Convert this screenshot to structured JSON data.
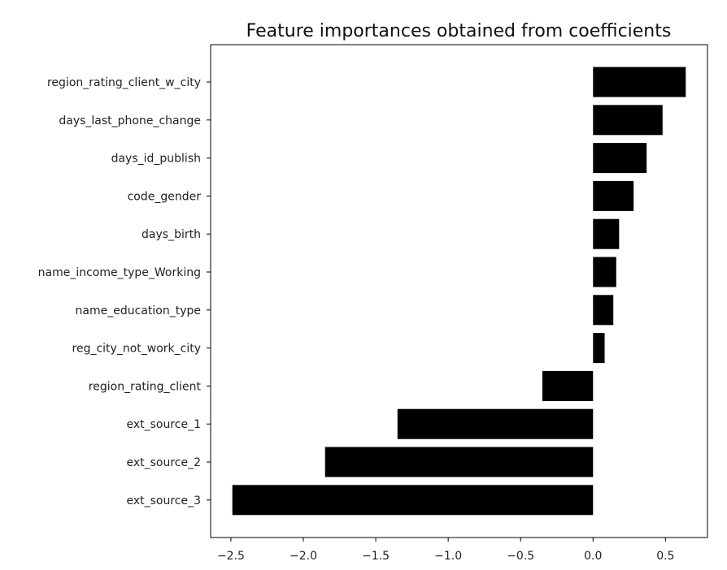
{
  "chart_data": {
    "type": "bar",
    "orientation": "horizontal",
    "title": "Feature importances obtained from coefficients",
    "xlabel": "",
    "ylabel": "",
    "categories": [
      "region_rating_client_w_city",
      "days_last_phone_change",
      "days_id_publish",
      "code_gender",
      "days_birth",
      "name_income_type_Working",
      "name_education_type",
      "reg_city_not_work_city",
      "region_rating_client",
      "ext_source_1",
      "ext_source_2",
      "ext_source_3"
    ],
    "values": [
      0.64,
      0.48,
      0.37,
      0.28,
      0.18,
      0.16,
      0.14,
      0.08,
      -0.35,
      -1.35,
      -1.85,
      -2.49
    ],
    "xlim": [
      -2.64,
      0.79
    ],
    "xticks": [
      -2.5,
      -2.0,
      -1.5,
      -1.0,
      -0.5,
      0.0,
      0.5
    ],
    "xtick_labels": [
      "−2.5",
      "−2.0",
      "−1.5",
      "−1.0",
      "−0.5",
      "0.0",
      "0.5"
    ],
    "bar_color": "#000000",
    "grid": false,
    "legend": "none"
  }
}
